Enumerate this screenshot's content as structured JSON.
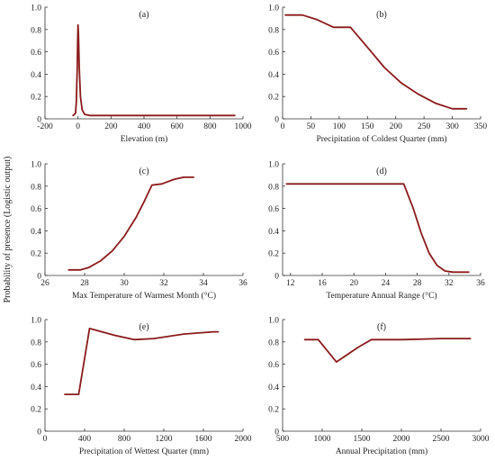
{
  "figure": {
    "ylabel": "Probability of presence (Logistic output)",
    "colors": {
      "curve": "#8b1a1a",
      "axis": "#333333"
    }
  },
  "chart_data": [
    {
      "type": "line",
      "tag": "(a)",
      "xlabel": "Elevation (m)",
      "xlim": [
        -200,
        1000
      ],
      "ylim": [
        0,
        1
      ],
      "xticks": [
        -200,
        0,
        200,
        400,
        600,
        800,
        1000
      ],
      "xtick_labels": [
        "-200",
        "0",
        "200",
        "400",
        "600",
        "800",
        "1000"
      ],
      "yticks": [
        0,
        0.2,
        0.4,
        0.6,
        0.8,
        1.0
      ],
      "ytick_labels": [
        "0",
        "0.2",
        "0.4",
        "0.6",
        "0.8",
        "1.0"
      ],
      "x": [
        -30,
        -15,
        -10,
        -5,
        -2,
        0,
        3,
        8,
        15,
        25,
        40,
        70,
        150,
        400,
        700,
        950
      ],
      "y": [
        0.03,
        0.05,
        0.15,
        0.45,
        0.7,
        0.84,
        0.75,
        0.45,
        0.2,
        0.08,
        0.04,
        0.03,
        0.03,
        0.03,
        0.03,
        0.03
      ]
    },
    {
      "type": "line",
      "tag": "(b)",
      "xlabel": "Precipitation of Coldest Quarter (mm)",
      "xlim": [
        0,
        350
      ],
      "ylim": [
        0,
        1
      ],
      "xticks": [
        0,
        50,
        100,
        150,
        200,
        250,
        300,
        350
      ],
      "xtick_labels": [
        "0",
        "50",
        "100",
        "150",
        "200",
        "250",
        "300",
        "350"
      ],
      "yticks": [
        0,
        0.2,
        0.4,
        0.6,
        0.8,
        1.0
      ],
      "ytick_labels": [
        "0",
        "0.2",
        "0.4",
        "0.6",
        "0.8",
        "1.0"
      ],
      "x": [
        5,
        35,
        60,
        90,
        120,
        150,
        180,
        210,
        240,
        270,
        300,
        325
      ],
      "y": [
        0.93,
        0.93,
        0.89,
        0.82,
        0.82,
        0.64,
        0.46,
        0.32,
        0.22,
        0.14,
        0.09,
        0.09
      ]
    },
    {
      "type": "line",
      "tag": "(c)",
      "xlabel": "Max Temperature of Warmest Month (°C)",
      "xlim": [
        26,
        36
      ],
      "ylim": [
        0,
        1
      ],
      "xticks": [
        26,
        28,
        30,
        32,
        34,
        36
      ],
      "xtick_labels": [
        "26",
        "28",
        "30",
        "32",
        "34",
        "36"
      ],
      "yticks": [
        0,
        0.2,
        0.4,
        0.6,
        0.8,
        1.0
      ],
      "ytick_labels": [
        "0",
        "0.2",
        "0.4",
        "0.6",
        "0.8",
        "1.0"
      ],
      "x": [
        27.2,
        27.8,
        28.2,
        28.8,
        29.4,
        30.0,
        30.6,
        31.0,
        31.4,
        31.9,
        32.5,
        33.0,
        33.5
      ],
      "y": [
        0.05,
        0.05,
        0.07,
        0.13,
        0.22,
        0.35,
        0.52,
        0.66,
        0.81,
        0.82,
        0.86,
        0.88,
        0.88
      ]
    },
    {
      "type": "line",
      "tag": "(d)",
      "xlabel": "Temperature Annual Range (°C)",
      "xlim": [
        11,
        36
      ],
      "ylim": [
        0,
        1
      ],
      "xticks": [
        12,
        16,
        20,
        24,
        28,
        32,
        36
      ],
      "xtick_labels": [
        "12",
        "16",
        "20",
        "24",
        "28",
        "32",
        "36"
      ],
      "yticks": [
        0,
        0.2,
        0.4,
        0.6,
        0.8,
        1.0
      ],
      "ytick_labels": [
        "0",
        "0.2",
        "0.4",
        "0.6",
        "0.8",
        "1.0"
      ],
      "x": [
        11.5,
        16,
        20,
        24,
        26.3,
        27.5,
        28.5,
        29.5,
        30.5,
        31.5,
        32.5,
        34.5
      ],
      "y": [
        0.82,
        0.82,
        0.82,
        0.82,
        0.82,
        0.6,
        0.38,
        0.2,
        0.09,
        0.04,
        0.03,
        0.03
      ]
    },
    {
      "type": "line",
      "tag": "(e)",
      "xlabel": "Precipitation of Wettest Quarter (mm)",
      "xlim": [
        0,
        2000
      ],
      "ylim": [
        0,
        1
      ],
      "xticks": [
        0,
        400,
        800,
        1200,
        1600,
        2000
      ],
      "xtick_labels": [
        "0",
        "400",
        "800",
        "1200",
        "1600",
        "2000"
      ],
      "yticks": [
        0,
        0.2,
        0.4,
        0.6,
        0.8,
        1.0
      ],
      "ytick_labels": [
        "0",
        "0.2",
        "0.4",
        "0.6",
        "0.8",
        "1.0"
      ],
      "x": [
        200,
        340,
        450,
        700,
        900,
        1100,
        1400,
        1700,
        1750
      ],
      "y": [
        0.33,
        0.33,
        0.92,
        0.86,
        0.82,
        0.83,
        0.87,
        0.89,
        0.89
      ]
    },
    {
      "type": "line",
      "tag": "(f)",
      "xlabel": "Annual Precipitation (mm)",
      "xlim": [
        500,
        3000
      ],
      "ylim": [
        0,
        1
      ],
      "xticks": [
        500,
        1000,
        1500,
        2000,
        2500,
        3000
      ],
      "xtick_labels": [
        "500",
        "1000",
        "1500",
        "2000",
        "2500",
        "3000"
      ],
      "yticks": [
        0,
        0.2,
        0.4,
        0.6,
        0.8,
        1.0
      ],
      "ytick_labels": [
        "0",
        "0.2",
        "0.4",
        "0.6",
        "0.8",
        "1.0"
      ],
      "x": [
        780,
        950,
        1180,
        1450,
        1620,
        2000,
        2500,
        2870
      ],
      "y": [
        0.82,
        0.82,
        0.62,
        0.75,
        0.82,
        0.82,
        0.83,
        0.83
      ]
    }
  ]
}
